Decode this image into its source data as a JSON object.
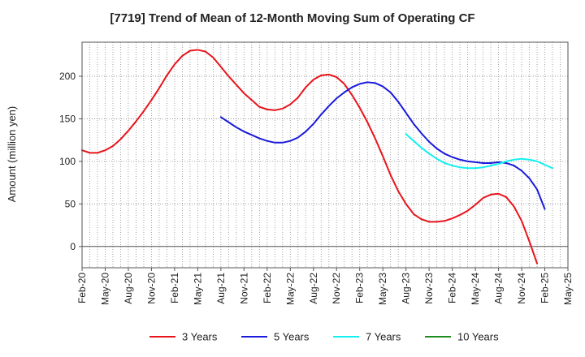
{
  "chart_data": {
    "type": "line",
    "title": "[7719]  Trend of Mean of 12-Month Moving Sum of Operating CF",
    "ylabel": "Amount (million yen)",
    "xlabel": "",
    "ylim": [
      -25,
      240
    ],
    "yticks": [
      0,
      50,
      100,
      150,
      200
    ],
    "x_tick_labels": [
      "Feb-20",
      "May-20",
      "Aug-20",
      "Nov-20",
      "Feb-21",
      "May-21",
      "Aug-21",
      "Nov-21",
      "Feb-22",
      "May-22",
      "Aug-22",
      "Nov-22",
      "Feb-23",
      "May-23",
      "Aug-23",
      "Nov-23",
      "Feb-24",
      "May-24",
      "Aug-24",
      "Nov-24",
      "Feb-25",
      "May-25"
    ],
    "x_start": "Feb-20",
    "grid": true,
    "legend_position": "bottom",
    "series": [
      {
        "name": "3 Years",
        "color": "#e8141c",
        "start_index": 0,
        "values": [
          113,
          110,
          110,
          113,
          118,
          126,
          136,
          147,
          159,
          172,
          186,
          201,
          214,
          224,
          230,
          231,
          229,
          222,
          211,
          200,
          190,
          180,
          172,
          164,
          161,
          160,
          162,
          167,
          175,
          187,
          196,
          201,
          202,
          199,
          191,
          178,
          163,
          146,
          127,
          106,
          84,
          65,
          50,
          38,
          32,
          29,
          29,
          30,
          33,
          37,
          42,
          49,
          57,
          61,
          62,
          58,
          47,
          30,
          6,
          -20
        ]
      },
      {
        "name": "5 Years",
        "color": "#1a1adc",
        "start_index": 18,
        "values": [
          152,
          146,
          140,
          135,
          131,
          127,
          124,
          122,
          122,
          124,
          128,
          135,
          144,
          155,
          165,
          174,
          181,
          187,
          191,
          193,
          192,
          188,
          181,
          170,
          157,
          144,
          133,
          123,
          115,
          109,
          105,
          102,
          100,
          99,
          98,
          98,
          99,
          98,
          95,
          89,
          80,
          67,
          44
        ]
      },
      {
        "name": "7 Years",
        "color": "#14f0f0",
        "start_index": 42,
        "values": [
          132,
          124,
          116,
          109,
          103,
          98,
          95,
          93,
          92,
          92,
          93,
          95,
          97,
          100,
          102,
          103,
          102,
          100,
          96,
          92
        ]
      },
      {
        "name": "10 Years",
        "color": "#1e8c1e",
        "start_index": 0,
        "values": []
      }
    ]
  }
}
